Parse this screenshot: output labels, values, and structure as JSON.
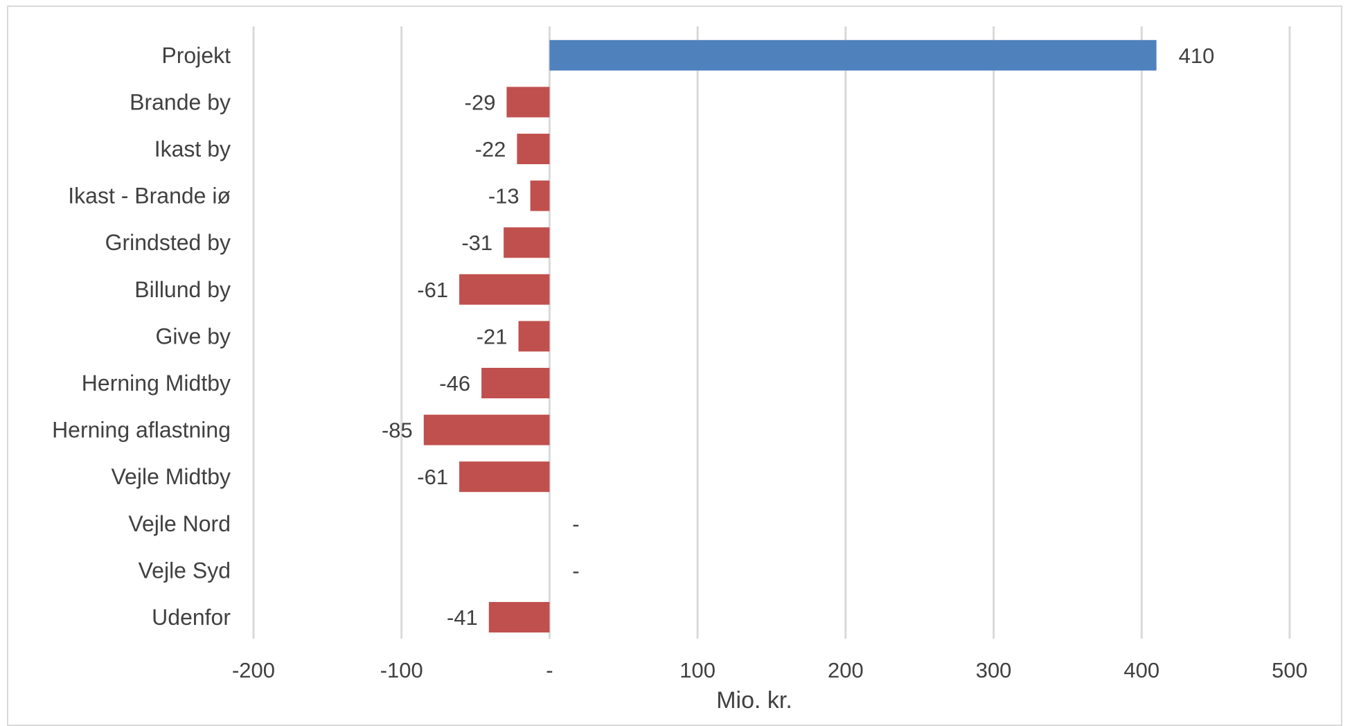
{
  "chart_data": {
    "type": "bar",
    "orientation": "horizontal",
    "categories": [
      "Projekt",
      "Brande by",
      "Ikast by",
      "Ikast - Brande iø",
      "Grindsted by",
      "Billund by",
      "Give by",
      "Herning Midtby",
      "Herning aflastning",
      "Vejle Midtby",
      "Vejle Nord",
      "Vejle Syd",
      "Udenfor"
    ],
    "values": [
      410,
      -29,
      -22,
      -13,
      -31,
      -61,
      -21,
      -46,
      -85,
      -61,
      0,
      0,
      -41
    ],
    "data_labels": [
      "410",
      "-29",
      "-22",
      "-13",
      "-31",
      "-61",
      "-21",
      "-46",
      "-85",
      "-61",
      "-",
      "-",
      "-41"
    ],
    "xlim": [
      -200,
      500
    ],
    "xticks": [
      -200,
      -100,
      0,
      100,
      200,
      300,
      400,
      500
    ],
    "xtick_labels": [
      "-200",
      "-100",
      "-",
      "100",
      "200",
      "300",
      "400",
      "500"
    ],
    "xlabel": "Mio. kr.",
    "title": "",
    "grid": "vertical",
    "legend": "none",
    "colors": {
      "positive": "#4f81bd",
      "negative": "#c0504d",
      "grid": "#d9d9d9",
      "text": "#404040"
    }
  }
}
